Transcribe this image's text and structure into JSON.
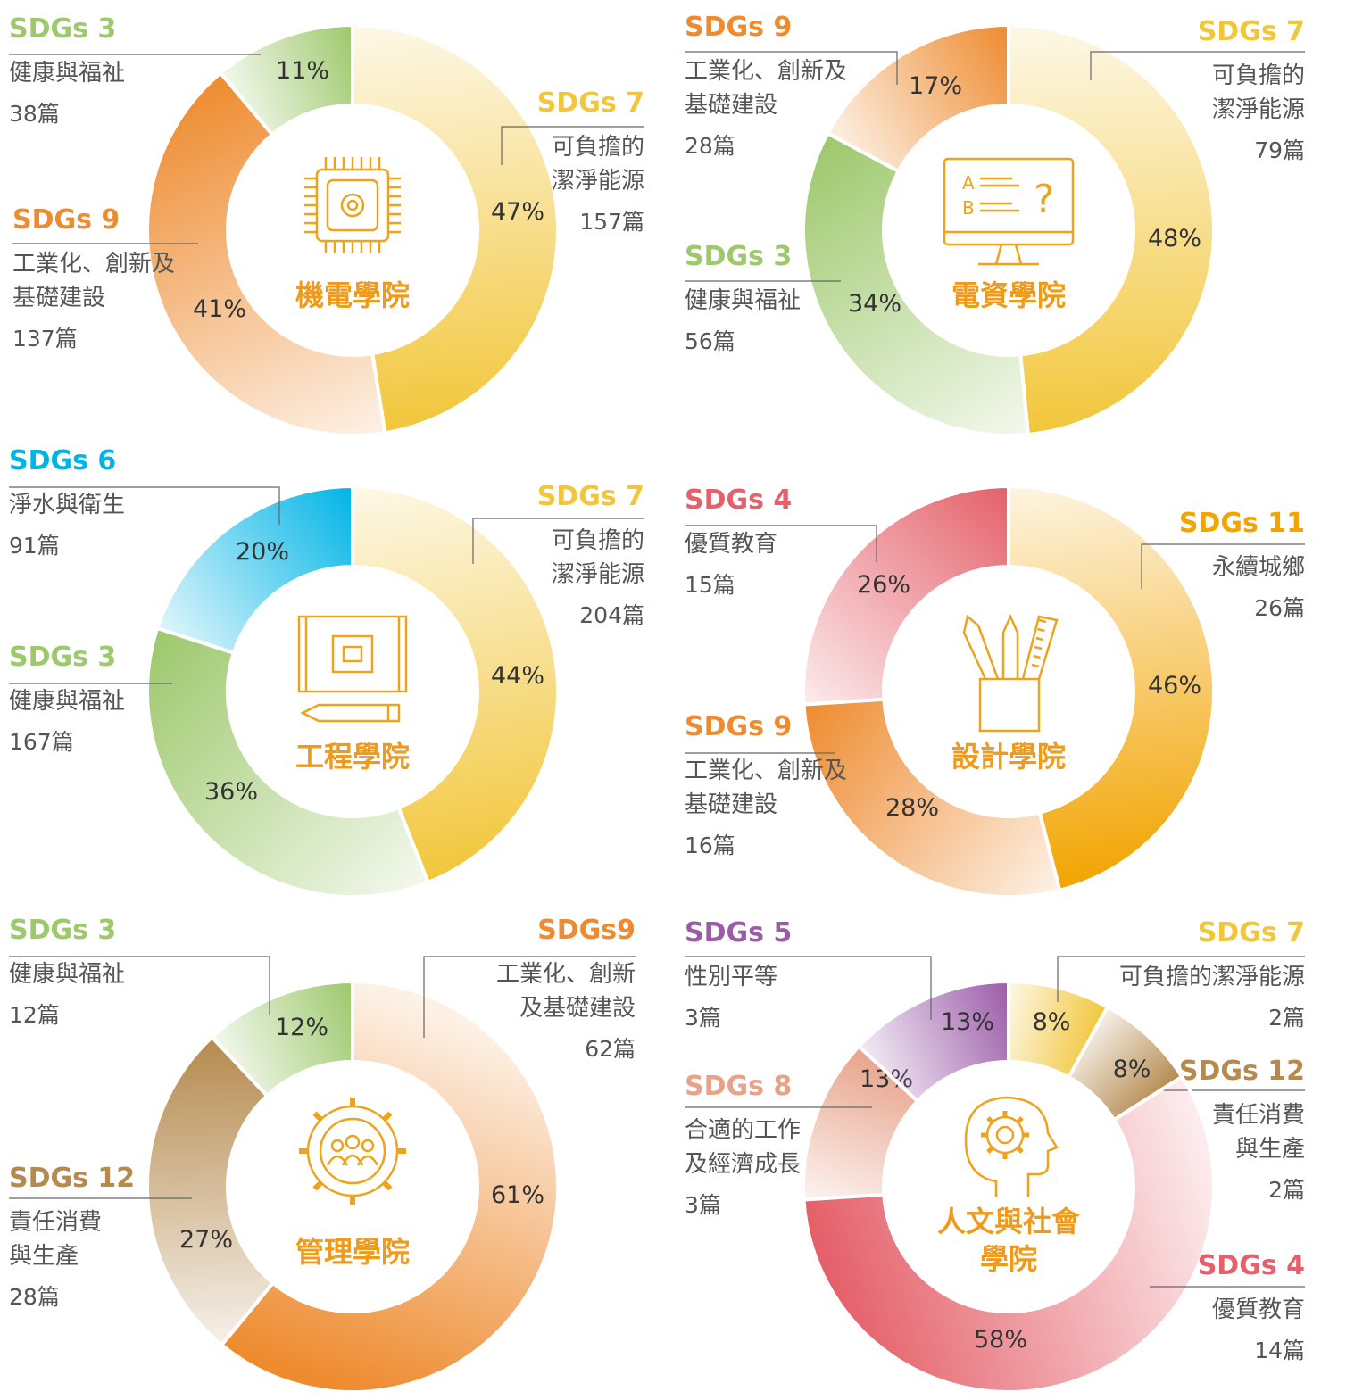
{
  "colors": {
    "sdg3": "#9dc86c",
    "sdg4": "#e5606a",
    "sdg5": "#9b5ba8",
    "sdg6": "#00b4e6",
    "sdg7": "#f2c63a",
    "sdg8": "#e8a28a",
    "sdg9": "#ee8b2f",
    "sdg11": "#f2a400",
    "sdg12": "#b58a4e",
    "icon": "#efa21c",
    "leader": "#666666"
  },
  "chart_data": [
    {
      "type": "pie",
      "title": "機電學院",
      "icon": "chip-icon",
      "slices": [
        {
          "sdg": "SDGs 7",
          "label": [
            "可負擔的",
            "潔淨能源"
          ],
          "count": "157篇",
          "value": 47,
          "pct": "47%",
          "color": "sdg7"
        },
        {
          "sdg": "SDGs 9",
          "label": [
            "工業化、創新及",
            "基礎建設"
          ],
          "count": "137篇",
          "value": 41,
          "pct": "41%",
          "color": "sdg9"
        },
        {
          "sdg": "SDGs 3",
          "label": [
            "健康與福祉"
          ],
          "count": "38篇",
          "value": 11,
          "pct": "11%",
          "color": "sdg3"
        }
      ]
    },
    {
      "type": "pie",
      "title": "電資學院",
      "icon": "monitor-quiz-icon",
      "slices": [
        {
          "sdg": "SDGs 7",
          "label": [
            "可負擔的",
            "潔淨能源"
          ],
          "count": "79篇",
          "value": 48,
          "pct": "48%",
          "color": "sdg7"
        },
        {
          "sdg": "SDGs 3",
          "label": [
            "健康與福祉"
          ],
          "count": "56篇",
          "value": 34,
          "pct": "34%",
          "color": "sdg3"
        },
        {
          "sdg": "SDGs 9",
          "label": [
            "工業化、創新及",
            "基礎建設"
          ],
          "count": "28篇",
          "value": 17,
          "pct": "17%",
          "color": "sdg9"
        }
      ]
    },
    {
      "type": "pie",
      "title": "工程學院",
      "icon": "blueprint-icon",
      "slices": [
        {
          "sdg": "SDGs 7",
          "label": [
            "可負擔的",
            "潔淨能源"
          ],
          "count": "204篇",
          "value": 44,
          "pct": "44%",
          "color": "sdg7"
        },
        {
          "sdg": "SDGs 3",
          "label": [
            "健康與福祉"
          ],
          "count": "167篇",
          "value": 36,
          "pct": "36%",
          "color": "sdg3"
        },
        {
          "sdg": "SDGs 6",
          "label": [
            "淨水與衛生"
          ],
          "count": "91篇",
          "value": 20,
          "pct": "20%",
          "color": "sdg6"
        }
      ]
    },
    {
      "type": "pie",
      "title": "設計學院",
      "icon": "pencil-cup-icon",
      "slices": [
        {
          "sdg": "SDGs 11",
          "label": [
            "永續城鄉"
          ],
          "count": "26篇",
          "value": 46,
          "pct": "46%",
          "color": "sdg11"
        },
        {
          "sdg": "SDGs 9",
          "label": [
            "工業化、創新及",
            "基礎建設"
          ],
          "count": "16篇",
          "value": 28,
          "pct": "28%",
          "color": "sdg9"
        },
        {
          "sdg": "SDGs 4",
          "label": [
            "優質教育"
          ],
          "count": "15篇",
          "value": 26,
          "pct": "26%",
          "color": "sdg4"
        }
      ]
    },
    {
      "type": "pie",
      "title": "管理學院",
      "icon": "team-gear-icon",
      "slices": [
        {
          "sdg": "SDGs9",
          "label": [
            "工業化、創新",
            "及基礎建設"
          ],
          "count": "62篇",
          "value": 61,
          "pct": "61%",
          "color": "sdg9"
        },
        {
          "sdg": "SDGs 12",
          "label": [
            "責任消費",
            "與生產"
          ],
          "count": "28篇",
          "value": 27,
          "pct": "27%",
          "color": "sdg12"
        },
        {
          "sdg": "SDGs 3",
          "label": [
            "健康與福祉"
          ],
          "count": "12篇",
          "value": 12,
          "pct": "12%",
          "color": "sdg3"
        }
      ]
    },
    {
      "type": "pie",
      "title": "人文與社會學院",
      "title_lines": [
        "人文與社會",
        "學院"
      ],
      "icon": "head-gear-icon",
      "slices": [
        {
          "sdg": "SDGs 7",
          "label": [
            "可負擔的潔淨能源"
          ],
          "count": "2篇",
          "value": 8,
          "pct": "8%",
          "color": "sdg7"
        },
        {
          "sdg": "SDGs 12",
          "label": [
            "責任消費",
            "與生產"
          ],
          "count": "2篇",
          "value": 8,
          "pct": "8%",
          "color": "sdg12"
        },
        {
          "sdg": "SDGs 4",
          "label": [
            "優質教育"
          ],
          "count": "14篇",
          "value": 58,
          "pct": "58%",
          "color": "sdg4"
        },
        {
          "sdg": "SDGs 8",
          "label": [
            "合適的工作",
            "及經濟成長"
          ],
          "count": "3篇",
          "value": 13,
          "pct": "13%",
          "color": "sdg8"
        },
        {
          "sdg": "SDGs 5",
          "label": [
            "性別平等"
          ],
          "count": "3篇",
          "value": 13,
          "pct": "13%",
          "color": "sdg5"
        }
      ]
    }
  ]
}
